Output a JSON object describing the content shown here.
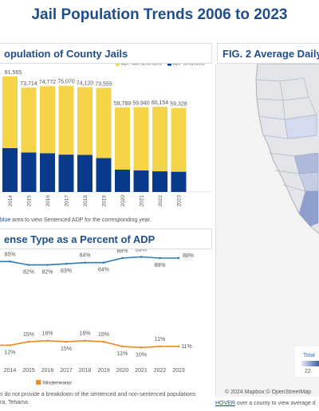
{
  "page": {
    "title": "Jail Population Trends 2006 to 2023"
  },
  "fig1": {
    "header": "opulation of County Jails",
    "legend": [
      {
        "label": "ADP Non Sentenced",
        "color": "#f5d547"
      },
      {
        "label": "ADP Sentenced",
        "color": "#0a3a8c"
      }
    ],
    "note_prefix": "blue",
    "note_suffix": " area to view Sentenced ADP for the corresponding year."
  },
  "fig3": {
    "header": "ense Type as a Percent of ADP",
    "legend": [
      {
        "label": "Misdemeanor",
        "color": "#f08a24"
      }
    ]
  },
  "fig2": {
    "header": "FIG. 2 Average Daily",
    "legend_title": "Total",
    "legend_min": "22",
    "map_credit": "© 2024 Mapbox  © OpenStreetMap",
    "hover_label": "HOVER",
    "hover_text": " over a county to view average d"
  },
  "footnote": {
    "line1": "s do not provide a breakdown of the sentenced and non-sentenced populations",
    "line2": "ra, Tehama."
  },
  "chart_data": [
    {
      "type": "bar",
      "categories": [
        "2014",
        "2015",
        "2016",
        "2017",
        "2018",
        "2019",
        "2020",
        "2021",
        "2022",
        "2023"
      ],
      "series": [
        {
          "name": "ADP Sentenced",
          "values": [
            31000,
            27900,
            27300,
            26400,
            26200,
            24000,
            15800,
            15200,
            14600,
            14300
          ]
        },
        {
          "name": "ADP Non Sentenced",
          "values": [
            50565,
            45814,
            47472,
            48670,
            47920,
            49555,
            43989,
            44740,
            45554,
            45028
          ]
        }
      ],
      "totals": [
        "81,565",
        "73,714",
        "74,772",
        "75,070",
        "74,120",
        "73,555",
        "59,789",
        "59,940",
        "60,154",
        "59,328"
      ],
      "legend_position": "top-right",
      "ylim": [
        0,
        85000
      ]
    },
    {
      "type": "line",
      "x": [
        "2014",
        "2015",
        "2016",
        "2017",
        "2018",
        "2019",
        "2020",
        "2021",
        "2022",
        "2023"
      ],
      "series": [
        {
          "name": "",
          "values": [
            85,
            82,
            82,
            83,
            84,
            84,
            88,
            89,
            88,
            88
          ],
          "labels": [
            "85%",
            "82%",
            "82%",
            "83%",
            "84%",
            "84%",
            "88%",
            "89%",
            "88%",
            "88%"
          ],
          "color": "#2e7ab8"
        },
        {
          "name": "Misdemeanor",
          "values": [
            12,
            15,
            16,
            15,
            16,
            15,
            11,
            10,
            11,
            11
          ],
          "labels": [
            "12%",
            "15%",
            "16%",
            "15%",
            "16%",
            "15%",
            "11%",
            "10%",
            "11%",
            "11%"
          ],
          "color": "#f08a24"
        }
      ],
      "legend_position": "bottom-left",
      "ylim": [
        0,
        100
      ]
    }
  ]
}
